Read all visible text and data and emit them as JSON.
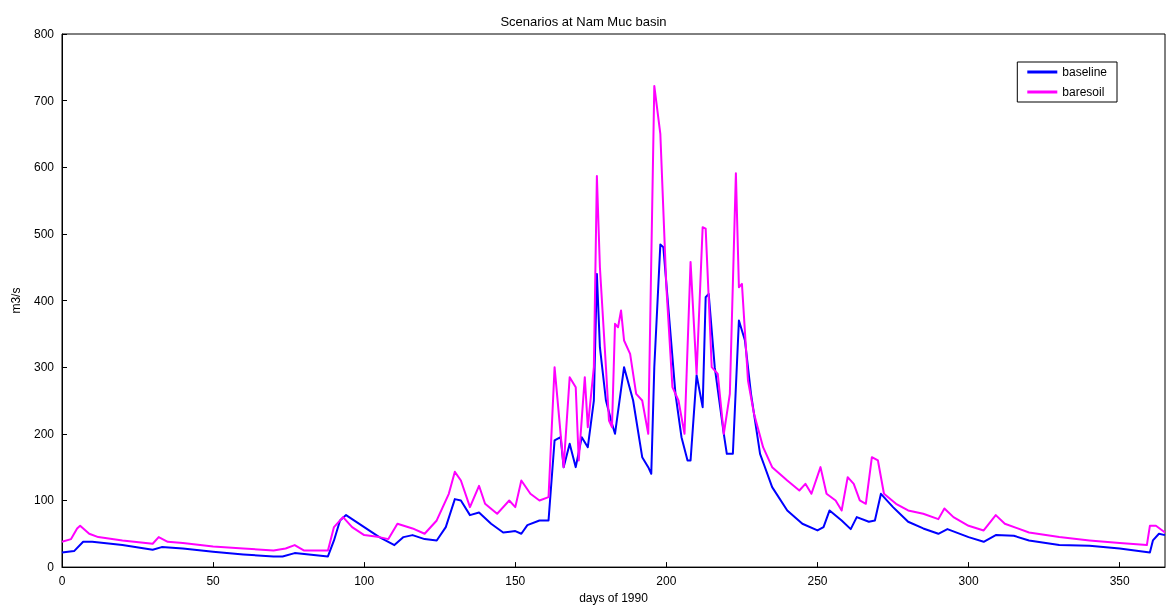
{
  "chart_data": {
    "type": "line",
    "title": "Scenarios at Nam Muc basin",
    "xlabel": "days of 1990",
    "ylabel": "m3/s",
    "xlim": [
      0,
      365
    ],
    "xticks": [
      0,
      50,
      100,
      150,
      200,
      250,
      300,
      350
    ],
    "ylim": [
      0,
      800
    ],
    "yticks": [
      0,
      100,
      200,
      300,
      400,
      500,
      600,
      700,
      800
    ],
    "grid": false,
    "legend": "top right",
    "marker": "none",
    "line_style": "solid",
    "series": [
      {
        "name": "baseline",
        "color": "#0000ff",
        "x": [
          0,
          4,
          7,
          10,
          20,
          30,
          33,
          40,
          50,
          60,
          70,
          73,
          77,
          88,
          90,
          92,
          94,
          100,
          105,
          110,
          113,
          116,
          120,
          124,
          127,
          130,
          132,
          135,
          138,
          142,
          146,
          150,
          152,
          154,
          158,
          161,
          163,
          165,
          166,
          168,
          170,
          172,
          174,
          176,
          177,
          178,
          180,
          182,
          183,
          186,
          189,
          192,
          194,
          195,
          196,
          198,
          199,
          201,
          203,
          205,
          207,
          208,
          210,
          212,
          213,
          214,
          216,
          219,
          220,
          222,
          224,
          226,
          228,
          231,
          235,
          240,
          245,
          250,
          252,
          254,
          258,
          261,
          263,
          267,
          269,
          271,
          275,
          280,
          285,
          290,
          293,
          300,
          305,
          309,
          315,
          320,
          330,
          340,
          350,
          360,
          361,
          363,
          365
        ],
        "values": [
          22,
          24,
          38,
          38,
          33,
          26,
          30,
          28,
          23,
          19,
          16,
          16,
          21,
          16,
          40,
          70,
          78,
          60,
          45,
          33,
          45,
          48,
          42,
          40,
          60,
          102,
          100,
          78,
          82,
          65,
          52,
          54,
          50,
          63,
          70,
          70,
          190,
          195,
          150,
          185,
          150,
          195,
          180,
          250,
          440,
          330,
          250,
          215,
          200,
          300,
          250,
          165,
          150,
          140,
          300,
          484,
          480,
          370,
          260,
          195,
          160,
          160,
          288,
          240,
          405,
          410,
          300,
          200,
          170,
          170,
          370,
          340,
          260,
          170,
          120,
          85,
          65,
          55,
          60,
          85,
          70,
          57,
          75,
          68,
          70,
          110,
          90,
          68,
          58,
          50,
          57,
          45,
          38,
          48,
          47,
          40,
          33,
          32,
          28,
          22,
          40,
          50,
          48
        ]
      },
      {
        "name": "baresoil",
        "color": "#ff00ff",
        "x": [
          0,
          3,
          5,
          6,
          9,
          12,
          20,
          30,
          32,
          35,
          40,
          50,
          60,
          70,
          74,
          77,
          80,
          88,
          90,
          93,
          96,
          100,
          105,
          108,
          111,
          116,
          120,
          124,
          128,
          130,
          132,
          135,
          138,
          140,
          144,
          148,
          150,
          152,
          155,
          158,
          161,
          163,
          165,
          166,
          168,
          170,
          171,
          173,
          174,
          176,
          177,
          178,
          180,
          181,
          182,
          183,
          184,
          185,
          186,
          188,
          190,
          192,
          194,
          196,
          198,
          200,
          202,
          204,
          206,
          208,
          210,
          212,
          213,
          215,
          217,
          219,
          221,
          223,
          224,
          225,
          227,
          229,
          232,
          235,
          240,
          244,
          246,
          248,
          251,
          253,
          256,
          258,
          260,
          262,
          264,
          266,
          268,
          270,
          272,
          276,
          280,
          285,
          290,
          292,
          295,
          300,
          305,
          309,
          312,
          320,
          330,
          340,
          350,
          359,
          360,
          362,
          365
        ],
        "values": [
          38,
          42,
          58,
          62,
          50,
          45,
          40,
          35,
          45,
          38,
          36,
          31,
          28,
          25,
          28,
          33,
          25,
          25,
          60,
          75,
          60,
          48,
          45,
          42,
          65,
          58,
          50,
          70,
          110,
          143,
          130,
          90,
          122,
          95,
          80,
          100,
          90,
          130,
          110,
          100,
          105,
          300,
          200,
          150,
          285,
          270,
          160,
          285,
          210,
          300,
          587,
          450,
          300,
          220,
          210,
          365,
          360,
          385,
          340,
          320,
          260,
          250,
          200,
          722,
          650,
          420,
          270,
          250,
          200,
          458,
          290,
          510,
          508,
          300,
          290,
          200,
          260,
          591,
          420,
          425,
          280,
          230,
          180,
          150,
          130,
          115,
          125,
          110,
          150,
          110,
          100,
          85,
          135,
          125,
          100,
          95,
          165,
          160,
          110,
          95,
          85,
          80,
          72,
          88,
          75,
          62,
          55,
          78,
          65,
          52,
          45,
          40,
          36,
          33,
          62,
          62,
          52
        ]
      }
    ]
  }
}
